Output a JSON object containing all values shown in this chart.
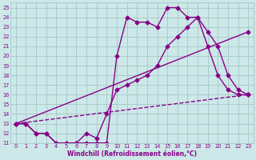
{
  "xlabel": "Windchill (Refroidissement éolien,°C)",
  "bg_color": "#cce8e8",
  "line_color": "#880088",
  "grid_color": "#aacccc",
  "xlim": [
    -0.5,
    23.5
  ],
  "ylim": [
    11,
    25.5
  ],
  "xticks": [
    0,
    1,
    2,
    3,
    4,
    5,
    6,
    7,
    8,
    9,
    10,
    11,
    12,
    13,
    14,
    15,
    16,
    17,
    18,
    19,
    20,
    21,
    22,
    23
  ],
  "yticks": [
    11,
    12,
    13,
    14,
    15,
    16,
    17,
    18,
    19,
    20,
    21,
    22,
    23,
    24,
    25
  ],
  "series": [
    {
      "x": [
        0,
        1,
        2,
        3,
        4,
        5,
        6,
        7,
        8,
        9,
        10,
        11,
        12,
        13,
        14,
        15,
        16,
        17,
        18,
        19,
        20,
        21,
        22,
        23
      ],
      "y": [
        13,
        13,
        12,
        12,
        11,
        11,
        11,
        11,
        11,
        11,
        20,
        24,
        23.5,
        23.5,
        23,
        25,
        25,
        24,
        24,
        21,
        18,
        16.5,
        16,
        16
      ],
      "style": "-",
      "marker": "D",
      "markersize": 2.5,
      "linewidth": 1.0
    },
    {
      "x": [
        0,
        23
      ],
      "y": [
        13,
        22.5
      ],
      "style": "-",
      "marker": "D",
      "markersize": 2.5,
      "linewidth": 1.0
    },
    {
      "x": [
        0,
        23
      ],
      "y": [
        13,
        16
      ],
      "style": "--",
      "marker": "D",
      "markersize": 2.5,
      "linewidth": 1.0
    },
    {
      "x": [
        0,
        1,
        2,
        3,
        4,
        5,
        6,
        7,
        8,
        9,
        10,
        11,
        12,
        13,
        14,
        15,
        16,
        17,
        18,
        19,
        20,
        21,
        22,
        23
      ],
      "y": [
        13,
        13,
        12,
        12,
        11,
        11,
        11,
        12,
        11.5,
        14,
        16.5,
        17,
        17.5,
        18,
        19,
        21,
        22,
        23,
        24,
        22.5,
        21,
        18,
        16.5,
        16
      ],
      "style": "-",
      "marker": "D",
      "markersize": 2.5,
      "linewidth": 1.0
    }
  ]
}
